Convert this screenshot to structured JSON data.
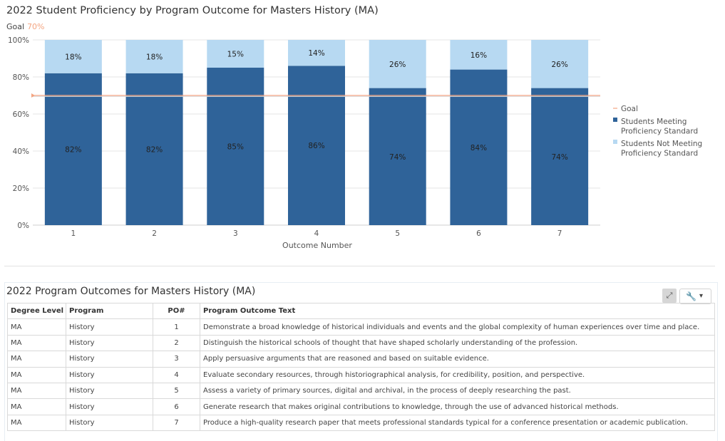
{
  "chart_data": {
    "type": "bar",
    "stacked": true,
    "title": "2022 Student Proficiency by Program Outcome for Masters History (MA)",
    "goal_label": "Goal",
    "goal_value_label": "70%",
    "goal": 70,
    "xlabel": "Outcome Number",
    "ylabel": "",
    "ylim": [
      0,
      100
    ],
    "yticks": [
      "0%",
      "20%",
      "40%",
      "60%",
      "80%",
      "100%"
    ],
    "categories": [
      "1",
      "2",
      "3",
      "4",
      "5",
      "6",
      "7"
    ],
    "series": [
      {
        "name": "Students Meeting Proficiency Standard",
        "values": [
          82,
          82,
          85,
          86,
          74,
          84,
          74
        ],
        "labels": [
          "82%",
          "82%",
          "85%",
          "86%",
          "74%",
          "84%",
          "74%"
        ],
        "color": "#2f6399"
      },
      {
        "name": "Students Not Meeting Proficiency Standard",
        "values": [
          18,
          18,
          15,
          14,
          26,
          16,
          26
        ],
        "labels": [
          "18%",
          "18%",
          "15%",
          "14%",
          "26%",
          "16%",
          "26%"
        ],
        "color": "#b7d9f2"
      }
    ],
    "goal_color": "#f4a582",
    "grid": true,
    "legend": "right"
  },
  "table_panel": {
    "title": "2022 Program Outcomes for Masters History (MA)",
    "tools_icons": [
      "expand-icon",
      "wrench-icon",
      "chevron-down-icon"
    ],
    "headers": [
      "Degree Level",
      "Program",
      "PO#",
      "Program Outcome Text"
    ],
    "rows": [
      [
        "MA",
        "History",
        "1",
        "Demonstrate a broad knowledge of historical individuals and events and the global complexity of human experiences over time and place."
      ],
      [
        "MA",
        "History",
        "2",
        "Distinguish the historical schools of thought that have shaped scholarly understanding of the profession."
      ],
      [
        "MA",
        "History",
        "3",
        "Apply persuasive arguments that are reasoned and based on suitable evidence."
      ],
      [
        "MA",
        "History",
        "4",
        "Evaluate secondary resources, through historiographical analysis, for credibility, position, and perspective."
      ],
      [
        "MA",
        "History",
        "5",
        "Assess a variety of primary sources, digital and archival, in the process of deeply researching the past."
      ],
      [
        "MA",
        "History",
        "6",
        "Generate research that makes original contributions to knowledge, through the use of advanced historical methods."
      ],
      [
        "MA",
        "History",
        "7",
        "Produce a high-quality research paper that meets professional standards typical for a conference presentation or academic publication."
      ]
    ]
  }
}
